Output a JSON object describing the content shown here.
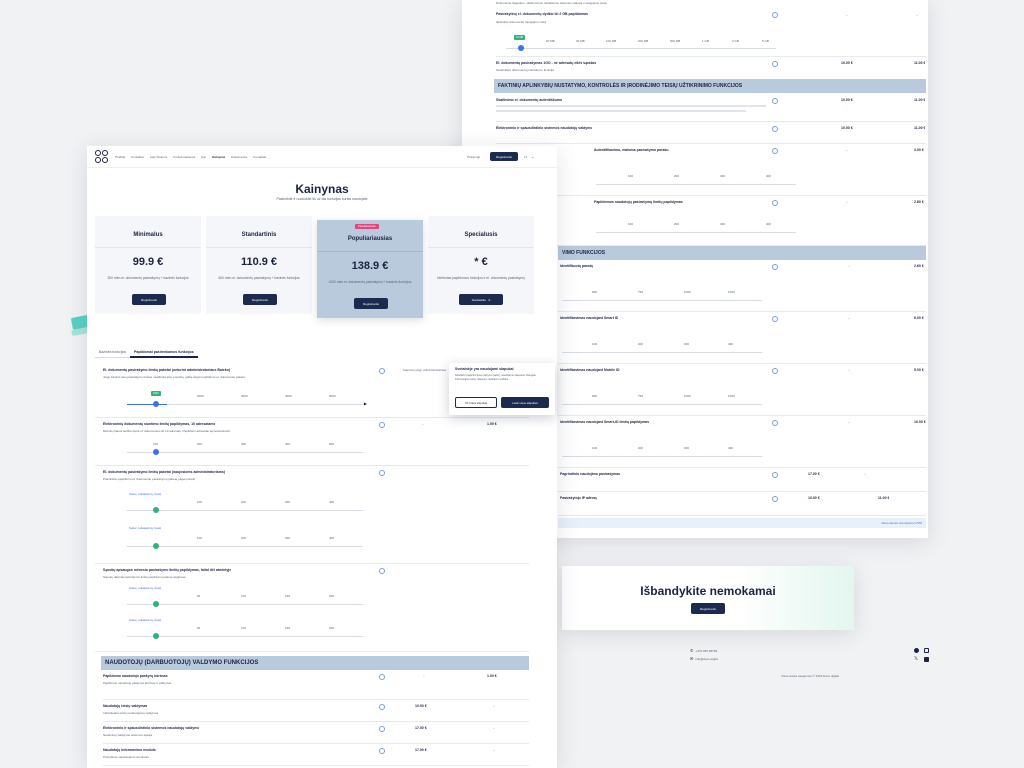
{
  "colors": {
    "navy": "#1b2a4e",
    "section": "#b9cadd",
    "accent_green": "#2fb37d",
    "accent_teal": "#5ad1c4",
    "slider_blue": "#3b6ff5",
    "badge_pink": "#e2457c"
  },
  "nav": {
    "logo": "DO CO",
    "items": [
      "Pradžia",
      "Kontaktai",
      "Apie Sistemą",
      "Funkcionalumas",
      "Įėjo",
      "Kainynas",
      "Dokumentai",
      "Kontaktai"
    ],
    "login": "Prisijungti",
    "register": "Registruotis",
    "lang": "LT"
  },
  "hero": {
    "title": "Kainynas",
    "subtitle": "Pasirinkite ir nuokokite tik už tas funkcijas kurias naudojate"
  },
  "plans": [
    {
      "name": "Minimalus",
      "price": "99.9 €",
      "desc": "300 mėn.el. dokumentų pasirašymų + bazinės funkcijos",
      "button": "Registruotis"
    },
    {
      "name": "Standartinis",
      "price": "110.9 €",
      "desc": "600 mėn.el. dokumentų pasirašymų + bazinės funkcijos",
      "button": "Registruotis"
    },
    {
      "name": "Populiariausias",
      "badge": "Populiariausias",
      "price": "138.9 €",
      "desc": "1000 mėn.el. dokumentų pasirašymų + bazinės funkcijos",
      "button": "Registruotis"
    },
    {
      "name": "Specialusis",
      "price": "* €",
      "desc": "Neribotas papildomos funkcijos ir el. dokumentų pasirašymų",
      "button": "Susisiekite"
    }
  ],
  "tabs": [
    "Bazinės funkcijos",
    "Papildomai pasirenkamos funkcijos"
  ],
  "features_front": [
    {
      "title": "El. dokumentų pasirašymo limitų paketai (neturint administratoriaus Baleko)",
      "desc": "Jeigu bazinis jūsų pasirašymo limitas neatitinka jūsų poreikių, galite įsigyti papildomų el. dokumentų paketų",
      "price_a": "",
      "price_b": "",
      "slider": [
        "1000",
        "2000",
        "3000",
        "4000",
        "5000"
      ],
      "badge": "1000"
    },
    {
      "title": "Elektroninių dokumentų siuntimo limitų papildymas, 10 adresatams",
      "desc": "Bazinis planas leidžia siųsti el. dokumentus iki 10 adresatų. Papildomi adresatai apmokestinami.",
      "price_a": "–",
      "price_b": "1.00 €",
      "slider": [
        "100",
        "200",
        "300",
        "400",
        "500"
      ],
      "badge": ""
    },
    {
      "title": "El. dokumentų pasirašymo limitų paketai (naujosioms administratoriams)",
      "desc": "Pasirinkite papildomų el. dokumentų pasirašymų paketą pagal poreikį",
      "price_a": "",
      "price_b": "",
      "slider": [
        "100",
        "200",
        "300",
        "400",
        "500"
      ],
      "badge": "",
      "sub_label": "Seka į reikalavimų lovelį"
    },
    {
      "title": "Sąvokų apsaugos mėnesio pasirašymo limitų papildymas, failai dėl atmintyje",
      "desc": "Sąvokų dalyviai pasirašymo limitų papildomų paketų įsigijimas",
      "price_a": "",
      "price_b": "",
      "slider": [
        "50",
        "100",
        "150",
        "200",
        "250"
      ],
      "badge": "",
      "sub_label": "Seka į reikalavimų lovelį"
    }
  ],
  "section_users": "NAUDOTOJŲ (DARBUOTOJŲ) VALDYMO FUNKCIJOS",
  "user_rows": [
    {
      "title": "Papildomo naudotojo paskyrų kūrimas",
      "desc": "Papildomų naudotojų paskyros kūrimas ir valdymas",
      "price_a": "–",
      "price_b": "1.00 €"
    },
    {
      "title": "Naudotojų teisių valdymas",
      "desc": "Individualus teisių naudotojams valdymas",
      "price_a": "10.00 €",
      "price_b": "–"
    },
    {
      "title": "Elektroninio ir spausdintinio sistemos naudotojų valdymo",
      "desc": "Naudotojų valdymas sistemos sąsaja",
      "price_a": "17.00 €",
      "price_b": "–"
    },
    {
      "title": "Naudotojų informavimo moduls",
      "desc": "Pranešimų naudotojams siuntimas",
      "price_a": "17.00 €",
      "price_b": "–"
    }
  ],
  "cookie": {
    "title": "Svetainėje yra naudojami slapukai",
    "text": "Siekdami pagerinti jūsų naršymo patirtį, naudojame slapukus. Daugiau informacijos rasite: Slapukų naudojimo politika",
    "link": "Slapukų naudojimo politika",
    "necessary": "Tik būtini slapukai",
    "accept": "Leisti visus slapukus",
    "col_label": "Kaina be pagr. administratoriaus"
  },
  "back": {
    "intro": "Dokumentų ilsapukus, skaitmeninio reikalavimo sistemos statusą ir saugojimo vietą",
    "storage": {
      "title": "Pasirašytinų el. dokumentų dydžio iki 2 GB papildomas",
      "desc": "Išplėskite dokumentų saugojimo vietą",
      "price_a": "–",
      "price_b": "–",
      "slider": [
        "10 MB",
        "20 MB",
        "30 MB",
        "100 MB",
        "200 MB",
        "500 MB",
        "1 GB",
        "2 GB",
        "5 GB"
      ],
      "badge": "10 MB"
    },
    "sign_row": {
      "title": "El. dokumentų pasirašymas 1GO - ne adresatų eilės sąrašas",
      "desc": "Naudokitės dokumentų pasirašymo funkcija",
      "price_a": "10.00 €",
      "price_b": "11.00 €"
    },
    "section_control": "FAKTINIŲ APLINKYBIŲ NUSTATYMO, KONTROLĖS IR ĮRODINĖJIMO TEISIŲ UŽTIKRINIMO FUNKCIJOS",
    "control_rows": [
      {
        "title": "Skaitinimo el. dokumentų autentiškumo",
        "price_a": "10.00 €",
        "price_b": "11.00 €"
      },
      {
        "title": "Elektroninio ir spausdintinio sistemos naudotojų valdymo",
        "price_a": "10.00 €",
        "price_b": "11.00 €"
      },
      {
        "title": "Autentifikavimo, matoma pasirašymo parašu",
        "price_a": "–",
        "price_b": "3.00 €"
      },
      {
        "title": "Papildomos naudotojų pasirašymų limitų papildymas",
        "price_a": "–",
        "price_b": "2.80 €"
      }
    ],
    "section_identity": "VIMO FUNKCIJOS",
    "identity_rows": [
      {
        "title": "Identifikuotų parašų",
        "price_a": "–",
        "price_b": "2.60 €"
      },
      {
        "title": "Identifikavimas naudojant Smart ID",
        "price_a": "–",
        "price_b": "6.00 €"
      },
      {
        "title": "Identifikavimas naudojant Mobile ID",
        "price_a": "–",
        "price_b": "5.00 €"
      },
      {
        "title": "Identifikavimas naudojant Smart-ID limitų papildymas",
        "price_a": "–",
        "price_b": "10.00 €"
      },
      {
        "title": "Pagrindinio naudojimo pasirašymas",
        "price_a": "17.00 €",
        "price_b": "–"
      },
      {
        "title": "Pasirašytojo IP adresų",
        "price_a": "10.00 €",
        "price_b": "11.00 €"
      }
    ],
    "slider_ticks_a": [
      "100",
      "200",
      "300",
      "400"
    ],
    "slider_ticks_b": [
      "500",
      "750",
      "1000",
      "1250"
    ],
    "footer_link": "Visus kainas nurodyta be PVM"
  },
  "cta": {
    "title": "Išbandykite nemokamai",
    "button": "Registruotis"
  },
  "footer": {
    "phone": "+370 655 68799",
    "email": "info@doco.digital",
    "copyright": "Visos teisės saugomos © 2023 Doco digital"
  }
}
